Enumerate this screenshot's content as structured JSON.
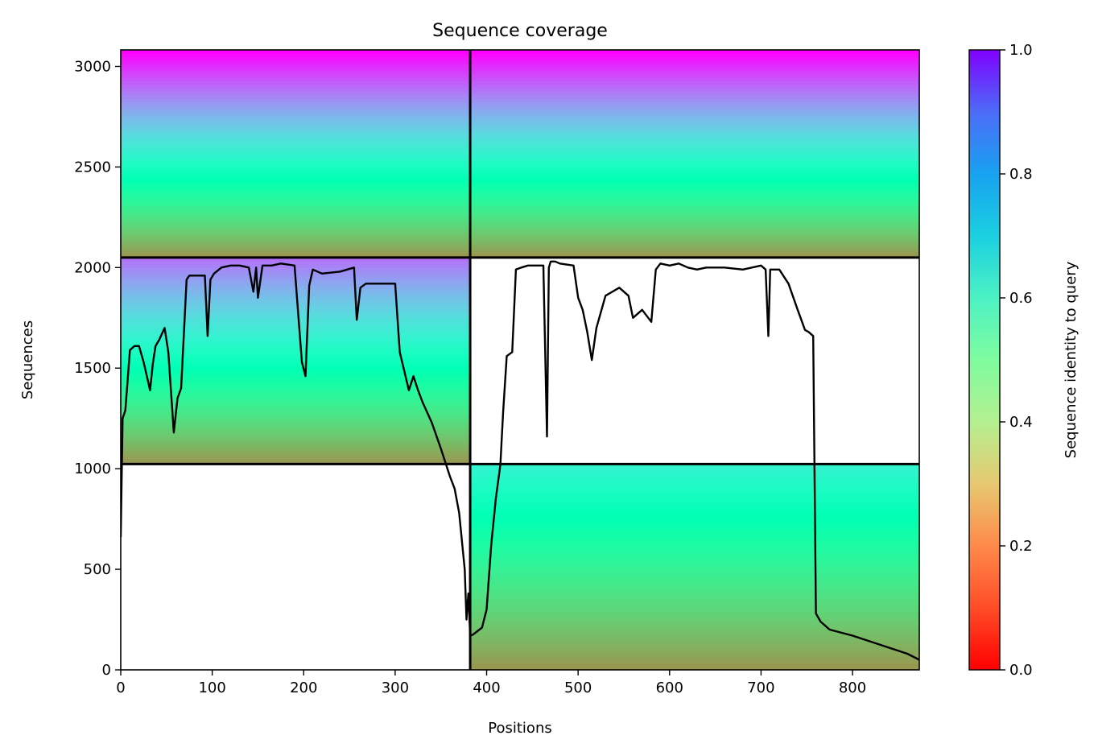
{
  "chart_data": {
    "type": "heatmap",
    "title": "Sequence coverage",
    "xlabel": "Positions",
    "ylabel": "Sequences",
    "xlim": [
      0,
      873
    ],
    "ylim": [
      0,
      3082
    ],
    "xticks": [
      0,
      100,
      200,
      300,
      400,
      500,
      600,
      700,
      800
    ],
    "yticks": [
      0,
      500,
      1000,
      1500,
      2000,
      2500,
      3000
    ],
    "colorbar": {
      "label": "Sequence identity to query",
      "ticks": [
        "0.0",
        "0.2",
        "0.4",
        "0.6",
        "0.8",
        "1.0"
      ],
      "cmap": "rainbow_r",
      "range": [
        0,
        1
      ]
    },
    "grid": false,
    "block_boundaries": {
      "x": [
        382
      ],
      "y": [
        1023,
        2050
      ]
    },
    "blocks": [
      {
        "x": [
          0,
          382
        ],
        "y": [
          2050,
          3082
        ],
        "identity_top": 1.0,
        "identity_bottom": 0.2
      },
      {
        "x": [
          382,
          873
        ],
        "y": [
          2050,
          3082
        ],
        "identity_top": 1.0,
        "identity_bottom": 0.2
      },
      {
        "x": [
          0,
          382
        ],
        "y": [
          1023,
          2050
        ],
        "identity_top": 0.85,
        "identity_bottom": 0.2
      },
      {
        "x": [
          382,
          873
        ],
        "y": [
          0,
          1023
        ],
        "identity_top": 0.6,
        "identity_bottom": 0.2
      }
    ],
    "coverage_line": {
      "color": "#000000",
      "x": [
        0,
        2,
        5,
        10,
        15,
        20,
        25,
        32,
        35,
        38,
        42,
        48,
        52,
        58,
        62,
        66,
        72,
        75,
        80,
        92,
        95,
        98,
        102,
        110,
        120,
        130,
        140,
        145,
        148,
        150,
        155,
        165,
        175,
        190,
        198,
        202,
        206,
        210,
        220,
        240,
        255,
        258,
        262,
        268,
        280,
        300,
        305,
        315,
        320,
        325,
        330,
        340,
        350,
        360,
        365,
        370,
        376,
        378,
        380,
        382,
        385,
        395,
        400,
        405,
        410,
        415,
        418,
        422,
        428,
        432,
        438,
        445,
        455,
        462,
        466,
        468,
        470,
        475,
        480,
        495,
        500,
        505,
        510,
        515,
        520,
        530,
        545,
        555,
        560,
        570,
        580,
        585,
        590,
        600,
        610,
        620,
        630,
        640,
        660,
        680,
        700,
        705,
        708,
        710,
        720,
        730,
        740,
        748,
        752,
        757,
        760,
        765,
        775,
        800,
        820,
        840,
        860,
        873
      ],
      "y": [
        660,
        1250,
        1290,
        1590,
        1610,
        1610,
        1530,
        1390,
        1520,
        1610,
        1640,
        1700,
        1580,
        1180,
        1350,
        1400,
        1940,
        1960,
        1960,
        1960,
        1660,
        1940,
        1970,
        2000,
        2010,
        2010,
        2000,
        1880,
        2000,
        1850,
        2010,
        2010,
        2020,
        2010,
        1530,
        1460,
        1910,
        1990,
        1970,
        1980,
        2000,
        1740,
        1900,
        1920,
        1920,
        1920,
        1580,
        1390,
        1460,
        1390,
        1330,
        1230,
        1100,
        960,
        900,
        780,
        500,
        250,
        380,
        170,
        175,
        210,
        300,
        620,
        850,
        1020,
        1280,
        1560,
        1580,
        1990,
        2000,
        2010,
        2010,
        2010,
        1160,
        2000,
        2030,
        2030,
        2020,
        2010,
        1850,
        1790,
        1680,
        1540,
        1700,
        1860,
        1900,
        1860,
        1750,
        1790,
        1730,
        1990,
        2020,
        2010,
        2020,
        2000,
        1990,
        2000,
        2000,
        1990,
        2010,
        1990,
        1660,
        1990,
        1990,
        1920,
        1790,
        1690,
        1680,
        1660,
        280,
        240,
        200,
        170,
        140,
        110,
        80,
        50
      ]
    }
  }
}
